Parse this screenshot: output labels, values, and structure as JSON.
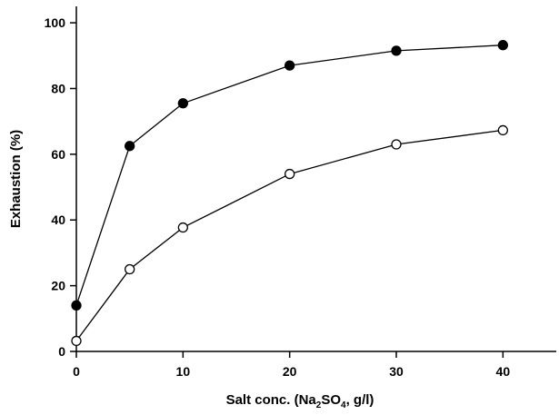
{
  "chart_data": {
    "type": "line",
    "xlabel": "Salt conc. (Na2SO4, g/l)",
    "xlabel_parts": {
      "prefix": "Salt conc. (Na",
      "sub1": "2",
      "mid": "SO",
      "sub2": "4",
      "suffix": ", g/l)"
    },
    "ylabel": "Exhaustion (%)",
    "xlim": [
      0,
      45
    ],
    "ylim": [
      0,
      105
    ],
    "xticks": [
      0,
      10,
      20,
      30,
      40
    ],
    "yticks": [
      0,
      20,
      40,
      60,
      80,
      100
    ],
    "grid": false,
    "x": [
      0,
      5,
      10,
      20,
      30,
      40
    ],
    "series": [
      {
        "marker": "filled-circle",
        "color": "#000000",
        "values": [
          14,
          62.5,
          75.5,
          87,
          91.5,
          93.2
        ]
      },
      {
        "marker": "open-circle",
        "color": "#000000",
        "values": [
          3.2,
          25,
          37.7,
          54,
          63,
          67.3
        ]
      }
    ]
  }
}
